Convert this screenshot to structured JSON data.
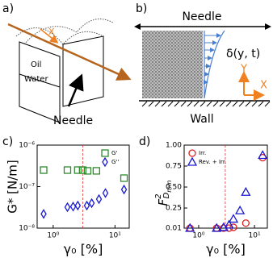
{
  "panels": {
    "a": {
      "label": "a)",
      "oil": "Oil",
      "water": "Water",
      "x": "X",
      "needle": "Needle"
    },
    "b": {
      "label": "b)",
      "needle": "Needle",
      "delta": "δ(y, t)",
      "y": "Y",
      "x": "X",
      "wall": "Wall"
    },
    "c": {
      "label": "c)"
    },
    "d": {
      "label": "d)"
    }
  },
  "chart_data": [
    {
      "type": "scatter",
      "xlabel": "γ₀ [%]",
      "ylabel": "G* [N/m]",
      "xscale": "log",
      "yscale": "log",
      "xlim": [
        0.55,
        17
      ],
      "ylim": [
        1e-08,
        1e-06
      ],
      "xticks": [
        {
          "value": 1,
          "label": "10⁰"
        },
        {
          "value": 10,
          "label": "10¹"
        }
      ],
      "yticks": [
        {
          "value": 1e-08,
          "label": "10⁻⁸"
        },
        {
          "value": 1e-07,
          "label": "10⁻⁷"
        },
        {
          "value": 1e-06,
          "label": "10⁻⁶"
        }
      ],
      "vline": 3,
      "vline_color": "#e03030",
      "legend": "upper right",
      "series": [
        {
          "name": "G'",
          "color": "#2e8b2e",
          "marker": "square",
          "x": [
            0.7,
            1.7,
            2.5,
            3.0,
            3.6,
            5.0,
            14
          ],
          "values": [
            2.5e-07,
            2.5e-07,
            2.5e-07,
            2.5e-07,
            2.4e-07,
            2.4e-07,
            1.6e-07
          ]
        },
        {
          "name": "G''",
          "color": "#1a1ad0",
          "marker": "diamond",
          "x": [
            0.7,
            1.7,
            2.1,
            2.5,
            3.5,
            4.2,
            5.5,
            7,
            14
          ],
          "values": [
            2.2e-08,
            3.2e-08,
            3.3e-08,
            3.5e-08,
            3.5e-08,
            4e-08,
            5e-08,
            7e-08,
            8.5e-08
          ]
        }
      ]
    },
    {
      "type": "scatter",
      "xlabel": "γ₀ [%]",
      "ylabel_parts": [
        "F",
        "2",
        "D",
        "min"
      ],
      "xscale": "log",
      "yscale": "linear",
      "xlim": [
        0.55,
        17
      ],
      "ylim": [
        0.01,
        1.0
      ],
      "xticks": [
        {
          "value": 1,
          "label": "10⁰"
        },
        {
          "value": 10,
          "label": "10¹"
        }
      ],
      "yticks": [
        0.01,
        0.25,
        {
          "value": 0.5,
          "label": "0.50"
        },
        0.75,
        {
          "value": 1.0,
          "label": "1.00"
        }
      ],
      "vline": 3,
      "vline_color": "#e03030",
      "legend": "upper left",
      "series": [
        {
          "name": "Irr.",
          "color": "#e02020",
          "marker": "circle",
          "x": [
            0.7,
            2.1,
            2.8,
            3.5,
            4.2,
            7,
            14
          ],
          "values": [
            0.01,
            0.01,
            0.01,
            0.01,
            0.02,
            0.07,
            0.85
          ]
        },
        {
          "name": "Rev. + Irr.",
          "color": "#1a1ad0",
          "marker": "triangle",
          "x": [
            0.7,
            2.1,
            2.8,
            3.5,
            4.2,
            5.5,
            7,
            14
          ],
          "values": [
            0.01,
            0.01,
            0.02,
            0.05,
            0.12,
            0.22,
            0.44,
            0.88
          ]
        }
      ]
    }
  ]
}
